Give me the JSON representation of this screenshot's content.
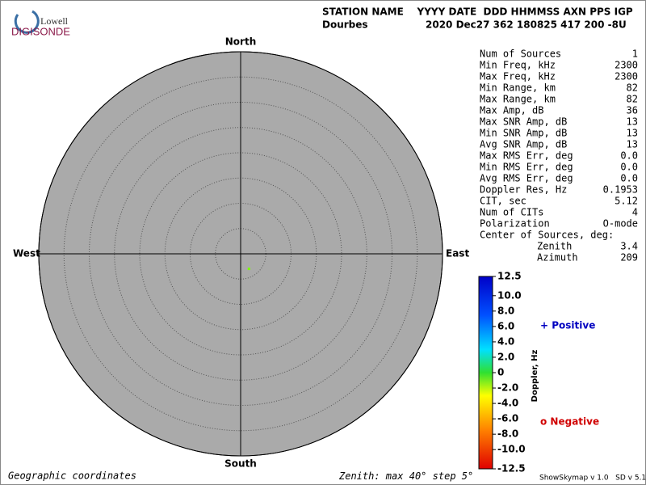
{
  "logo": {
    "top": "Lowell",
    "bottom": "DIGISONDE"
  },
  "header": {
    "columns": "STATION NAME    YYYY DATE  DDD HHMMSS AXN PPS IGP",
    "station": "Dourbes",
    "values": "2020 Dec27 362 180825 417 200 -8U"
  },
  "compass": {
    "north": "North",
    "south": "South",
    "west": "West",
    "east": "East"
  },
  "stats": [
    {
      "label": "Num of Sources",
      "value": "1"
    },
    {
      "label": "Min Freq, kHz",
      "value": "2300"
    },
    {
      "label": "Max Freq, kHz",
      "value": "2300"
    },
    {
      "label": "Min Range, km",
      "value": "82"
    },
    {
      "label": "Max Range, km",
      "value": "82"
    },
    {
      "label": "Max Amp, dB",
      "value": "36"
    },
    {
      "label": "Max SNR Amp, dB",
      "value": "13"
    },
    {
      "label": "Min SNR Amp, dB",
      "value": "13"
    },
    {
      "label": "Avg SNR Amp, dB",
      "value": "13"
    },
    {
      "label": "Max RMS Err, deg",
      "value": "0.0"
    },
    {
      "label": "Min RMS Err, deg",
      "value": "0.0"
    },
    {
      "label": "Avg RMS Err, deg",
      "value": "0.0"
    },
    {
      "label": "Doppler Res, Hz",
      "value": "0.1953"
    },
    {
      "label": "CIT, sec",
      "value": "5.12"
    },
    {
      "label": "Num of CITs",
      "value": "4"
    },
    {
      "label": "Polarization",
      "value": "O-mode"
    }
  ],
  "center": {
    "label": "Center of Sources, deg:",
    "zenith_label": "Zenith",
    "zenith": 3.4,
    "azimuth_label": "Azimuth",
    "azimuth": 209
  },
  "colorbar": {
    "title": "Doppler, Hz",
    "ticks": [
      12.5,
      {
        "value": 10,
        "label": "10.0"
      },
      {
        "value": 8,
        "label": "8.0"
      },
      {
        "value": 6,
        "label": "6.0"
      },
      {
        "value": 4,
        "label": "4.0"
      },
      {
        "value": 2,
        "label": "2.0"
      },
      0,
      {
        "value": -2,
        "label": "-2.0"
      },
      {
        "value": -4,
        "label": "-4.0"
      },
      {
        "value": -6,
        "label": "-6.0"
      },
      {
        "value": -8,
        "label": "-8.0"
      },
      {
        "value": -10,
        "label": "-10.0"
      },
      -12.5
    ],
    "positive": "+ Positive",
    "negative": "o Negative"
  },
  "footer": {
    "coordinates": "Geographic coordinates",
    "zenith_label": "Zenith: max",
    "zenith_max": 40,
    "degree_unit": "°",
    "step_label": "step",
    "zenith_step": 5,
    "version": "ShowSkymap v 1.0   SD v 5.1"
  }
}
